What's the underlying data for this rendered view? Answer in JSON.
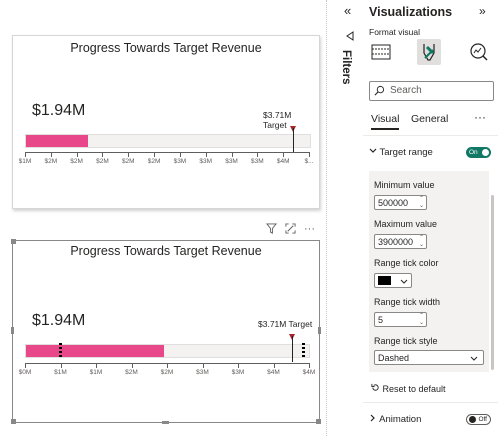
{
  "charts": [
    {
      "title": "Progress Towards Target Revenue",
      "actual_label": "$1.94M",
      "target_label_line1": "$3.71M",
      "target_label_line2": "Target",
      "ticks": [
        "$1M",
        "$2M",
        "$2M",
        "$2M",
        "$2M",
        "$2M",
        "$3M",
        "$3M",
        "$3M",
        "$3M",
        "$4M",
        "$..."
      ]
    },
    {
      "title": "Progress Towards Target Revenue",
      "actual_label": "$1.94M",
      "target_label": "$3.71M Target",
      "ticks": [
        "$0M",
        "$1M",
        "$1M",
        "$2M",
        "$2M",
        "$3M",
        "$3M",
        "$4M",
        "$4M"
      ]
    }
  ],
  "chart_data": [
    {
      "type": "bar",
      "title": "Progress Towards Target Revenue",
      "actual": 1.94,
      "target": 3.71,
      "unit": "$M",
      "xlim": [
        0.5,
        4.2
      ]
    },
    {
      "type": "bar",
      "title": "Progress Towards Target Revenue",
      "actual": 1.94,
      "target": 3.71,
      "unit": "$M",
      "xlim": [
        0,
        4.3
      ],
      "range_min": 0.5,
      "range_max": 3.9
    }
  ],
  "visual_header": {
    "filter_icon": "filter-icon",
    "focus_icon": "focus-mode-icon",
    "more": "···"
  },
  "filters_pane": {
    "label": "Filters",
    "collapse": "«"
  },
  "pane": {
    "title": "Visualizations",
    "collapse": "»",
    "format_visual": "Format visual",
    "search_placeholder": "Search",
    "tabs": [
      "Visual",
      "General"
    ],
    "more": "···",
    "target_range": {
      "label": "Target range",
      "toggle": "On"
    },
    "min_label": "Minimum value",
    "min_value": "500000",
    "max_label": "Maximum value",
    "max_value": "3900000",
    "tick_color_label": "Range tick color",
    "tick_color": "#000000",
    "tick_width_label": "Range tick width",
    "tick_width": "5",
    "tick_style_label": "Range tick style",
    "tick_style": "Dashed",
    "reset": "Reset to default",
    "animation": {
      "label": "Animation",
      "toggle": "Off"
    }
  }
}
